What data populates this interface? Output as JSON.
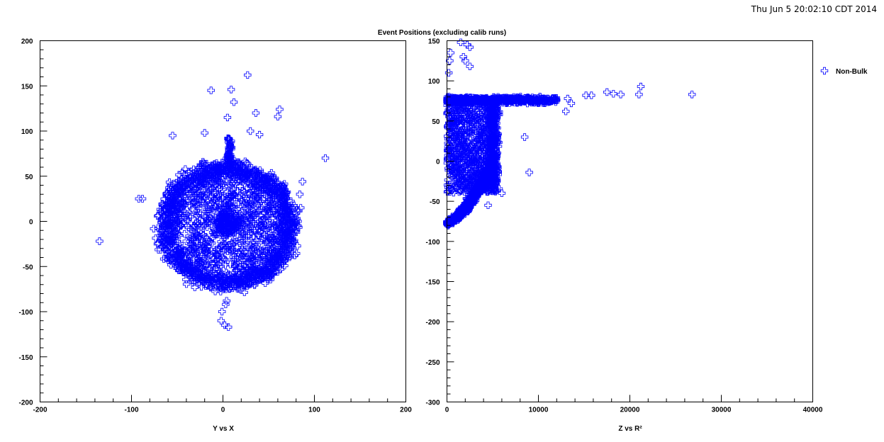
{
  "header": {
    "timestamp": "Thu Jun  5 20:02:10 CDT 2014",
    "title": "Event Positions (excluding calib runs)"
  },
  "legend": {
    "label": "Non-Bulk",
    "marker": "open-cross",
    "placement": "top-right, outside plots"
  },
  "colors": {
    "marker": "#0000ff",
    "frame": "#000000"
  },
  "chart_data": [
    {
      "type": "scatter",
      "title": "",
      "xlabel": "Y vs X",
      "ylabel": "",
      "xlim": [
        -200,
        200
      ],
      "ylim": [
        -200,
        200
      ],
      "xticks": [
        -200,
        -100,
        0,
        100,
        200
      ],
      "yticks": [
        -200,
        -150,
        -100,
        -50,
        0,
        50,
        100,
        150,
        200
      ],
      "grid": false,
      "series": [
        {
          "name": "Non-Bulk",
          "marker": "open-cross",
          "distribution": {
            "disk": {
              "center": [
                5,
                -5
              ],
              "radius_x": 73,
              "radius_y": 68,
              "dense_ring_width": 12
            },
            "vertical_stub": {
              "x": 7,
              "y_range": [
                60,
                95
              ]
            }
          },
          "outliers": [
            [
              -135,
              -22
            ],
            [
              -92,
              25
            ],
            [
              -88,
              25
            ],
            [
              -13,
              145
            ],
            [
              9,
              146
            ],
            [
              27,
              162
            ],
            [
              12,
              132
            ],
            [
              5,
              115
            ],
            [
              36,
              120
            ],
            [
              62,
              124
            ],
            [
              60,
              116
            ],
            [
              112,
              70
            ],
            [
              87,
              44
            ],
            [
              84,
              30
            ],
            [
              85,
              15
            ],
            [
              -55,
              95
            ],
            [
              -20,
              98
            ],
            [
              30,
              100
            ],
            [
              40,
              96
            ],
            [
              2,
              -115
            ],
            [
              6,
              -117
            ],
            [
              -1,
              -100
            ],
            [
              3,
              -92
            ],
            [
              4,
              -88
            ],
            [
              -2,
              -110
            ]
          ]
        }
      ]
    },
    {
      "type": "scatter",
      "title": "",
      "xlabel": "Z vs R²",
      "ylabel": "",
      "xlim": [
        0,
        40000
      ],
      "ylim": [
        -300,
        150
      ],
      "xticks": [
        0,
        10000,
        20000,
        30000,
        40000
      ],
      "yticks": [
        -300,
        -250,
        -200,
        -150,
        -100,
        -50,
        0,
        50,
        100,
        150
      ],
      "grid": false,
      "series": [
        {
          "name": "Non-Bulk",
          "marker": "open-cross",
          "distribution": {
            "top_band": {
              "y": 76,
              "x_range": [
                0,
                12000
              ]
            },
            "side_band": {
              "r2": 5000,
              "y_range": [
                -40,
                76
              ]
            },
            "bottom_arc": {
              "from": [
                0,
                -78
              ],
              "to": [
                5000,
                -5
              ]
            },
            "interior_r2_max": 4500
          },
          "outliers": [
            [
              200,
              110
            ],
            [
              300,
              125
            ],
            [
              400,
              135
            ],
            [
              1500,
              148
            ],
            [
              2200,
              145
            ],
            [
              2500,
              142
            ],
            [
              1800,
              130
            ],
            [
              2000,
              125
            ],
            [
              2500,
              118
            ],
            [
              13200,
              78
            ],
            [
              13600,
              72
            ],
            [
              13000,
              62
            ],
            [
              15200,
              82
            ],
            [
              15800,
              82
            ],
            [
              17500,
              86
            ],
            [
              18200,
              84
            ],
            [
              19000,
              83
            ],
            [
              21000,
              83
            ],
            [
              21200,
              93
            ],
            [
              26800,
              83
            ],
            [
              9000,
              -14
            ],
            [
              8500,
              30
            ],
            [
              6000,
              -40
            ],
            [
              4500,
              -55
            ]
          ]
        }
      ]
    }
  ]
}
